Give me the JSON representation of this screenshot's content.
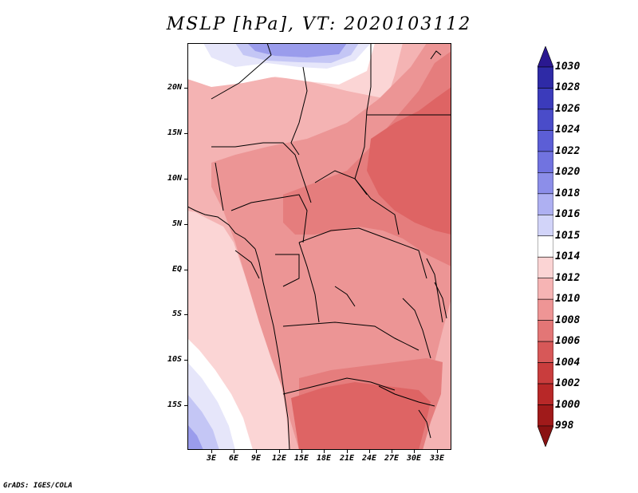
{
  "title": "MSLP [hPa], VT: 2020103112",
  "footer": "GrADS: IGES/COLA",
  "lat_labels": [
    "20N",
    "15N",
    "10N",
    "5N",
    "EQ",
    "5S",
    "10S",
    "15S"
  ],
  "lon_labels": [
    "3E",
    "6E",
    "9E",
    "12E",
    "15E",
    "18E",
    "21E",
    "24E",
    "27E",
    "30E",
    "33E"
  ],
  "colorbar": {
    "levels": [
      "1030",
      "1028",
      "1026",
      "1024",
      "1022",
      "1020",
      "1018",
      "1016",
      "1015",
      "1014",
      "1012",
      "1010",
      "1008",
      "1006",
      "1004",
      "1002",
      "1000",
      "998"
    ],
    "colors": [
      "#2a1890",
      "#2e2aa6",
      "#3b3bbb",
      "#4a4cc9",
      "#5c5ed6",
      "#7173e0",
      "#8c8ee9",
      "#aeb0f2",
      "#d2d4f9",
      "#ffffff",
      "#fbd4d4",
      "#f6b4b4",
      "#ee9595",
      "#e37676",
      "#d75858",
      "#c93d3d",
      "#b82828",
      "#a01a1a",
      "#8a1212"
    ]
  },
  "colors": {
    "c1004": "#de6464",
    "c1006": "#e57d7d",
    "c1008": "#ec9595",
    "c1010": "#f4b3b3",
    "c1012": "#fbd5d5",
    "c1014": "#ffffff",
    "c1015": "#e6e6fa",
    "c1016": "#c4c6f5",
    "c1018": "#9a9cec"
  }
}
